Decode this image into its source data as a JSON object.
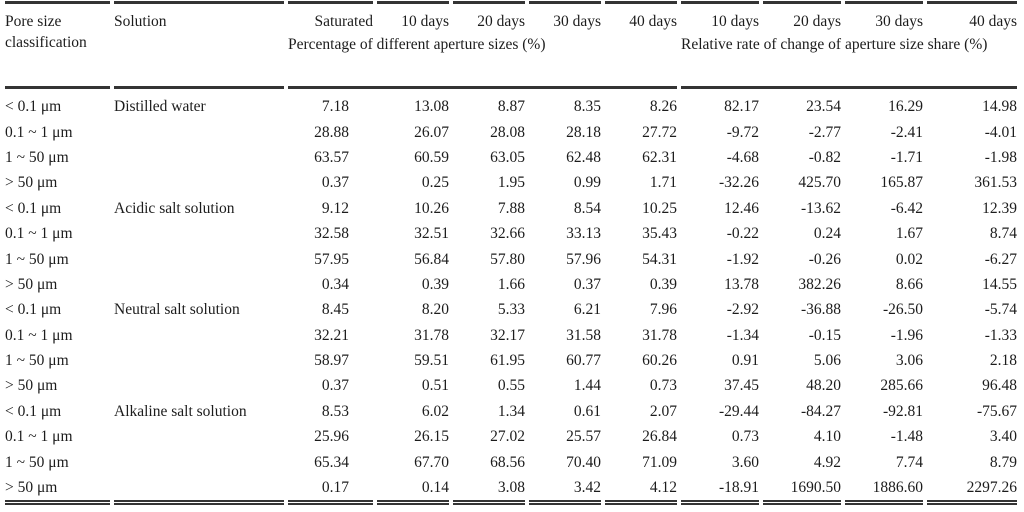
{
  "page": {
    "background_color": "#ffffff",
    "text_color": "#1c1c1c",
    "rule_color": "#343434"
  },
  "table": {
    "header": {
      "pore_col": "Pore size classification",
      "solution_col": "Solution",
      "time_headers": [
        "Saturated",
        "10 days",
        "20 days",
        "30 days",
        "40 days",
        "10 days",
        "20 days",
        "30 days",
        "40 days"
      ],
      "group_percentage": "Percentage of different aperture sizes (%)",
      "group_relative": "Relative rate of change of aperture size share (%)"
    },
    "groups": [
      {
        "solution": "Distilled water",
        "rows": [
          {
            "pore": "< 0.1 μm",
            "values": [
              "7.18",
              "13.08",
              "8.87",
              "8.35",
              "8.26",
              "82.17",
              "23.54",
              "16.29",
              "14.98"
            ]
          },
          {
            "pore": "0.1 ~ 1 μm",
            "values": [
              "28.88",
              "26.07",
              "28.08",
              "28.18",
              "27.72",
              "-9.72",
              "-2.77",
              "-2.41",
              "-4.01"
            ]
          },
          {
            "pore": "1 ~ 50 μm",
            "values": [
              "63.57",
              "60.59",
              "63.05",
              "62.48",
              "62.31",
              "-4.68",
              "-0.82",
              "-1.71",
              "-1.98"
            ]
          },
          {
            "pore": "> 50 μm",
            "values": [
              "0.37",
              "0.25",
              "1.95",
              "0.99",
              "1.71",
              "-32.26",
              "425.70",
              "165.87",
              "361.53"
            ]
          }
        ]
      },
      {
        "solution": "Acidic salt solution",
        "rows": [
          {
            "pore": "< 0.1 μm",
            "values": [
              "9.12",
              "10.26",
              "7.88",
              "8.54",
              "10.25",
              "12.46",
              "-13.62",
              "-6.42",
              "12.39"
            ]
          },
          {
            "pore": "0.1 ~ 1 μm",
            "values": [
              "32.58",
              "32.51",
              "32.66",
              "33.13",
              "35.43",
              "-0.22",
              "0.24",
              "1.67",
              "8.74"
            ]
          },
          {
            "pore": "1 ~ 50 μm",
            "values": [
              "57.95",
              "56.84",
              "57.80",
              "57.96",
              "54.31",
              "-1.92",
              "-0.26",
              "0.02",
              "-6.27"
            ]
          },
          {
            "pore": "> 50 μm",
            "values": [
              "0.34",
              "0.39",
              "1.66",
              "0.37",
              "0.39",
              "13.78",
              "382.26",
              "8.66",
              "14.55"
            ]
          }
        ]
      },
      {
        "solution": "Neutral salt solution",
        "rows": [
          {
            "pore": "< 0.1 μm",
            "values": [
              "8.45",
              "8.20",
              "5.33",
              "6.21",
              "7.96",
              "-2.92",
              "-36.88",
              "-26.50",
              "-5.74"
            ]
          },
          {
            "pore": "0.1 ~ 1 μm",
            "values": [
              "32.21",
              "31.78",
              "32.17",
              "31.58",
              "31.78",
              "-1.34",
              "-0.15",
              "-1.96",
              "-1.33"
            ]
          },
          {
            "pore": "1 ~ 50 μm",
            "values": [
              "58.97",
              "59.51",
              "61.95",
              "60.77",
              "60.26",
              "0.91",
              "5.06",
              "3.06",
              "2.18"
            ]
          },
          {
            "pore": "> 50 μm",
            "values": [
              "0.37",
              "0.51",
              "0.55",
              "1.44",
              "0.73",
              "37.45",
              "48.20",
              "285.66",
              "96.48"
            ]
          }
        ]
      },
      {
        "solution": "Alkaline salt solution",
        "rows": [
          {
            "pore": "< 0.1 μm",
            "values": [
              "8.53",
              "6.02",
              "1.34",
              "0.61",
              "2.07",
              "-29.44",
              "-84.27",
              "-92.81",
              "-75.67"
            ]
          },
          {
            "pore": "0.1 ~ 1 μm",
            "values": [
              "25.96",
              "26.15",
              "27.02",
              "25.57",
              "26.84",
              "0.73",
              "4.10",
              "-1.48",
              "3.40"
            ]
          },
          {
            "pore": "1 ~ 50 μm",
            "values": [
              "65.34",
              "67.70",
              "68.56",
              "70.40",
              "71.09",
              "3.60",
              "4.92",
              "7.74",
              "8.79"
            ]
          },
          {
            "pore": "> 50 μm",
            "values": [
              "0.17",
              "0.14",
              "3.08",
              "3.42",
              "4.12",
              "-18.91",
              "1690.50",
              "1886.60",
              "2297.26"
            ]
          }
        ]
      }
    ]
  }
}
